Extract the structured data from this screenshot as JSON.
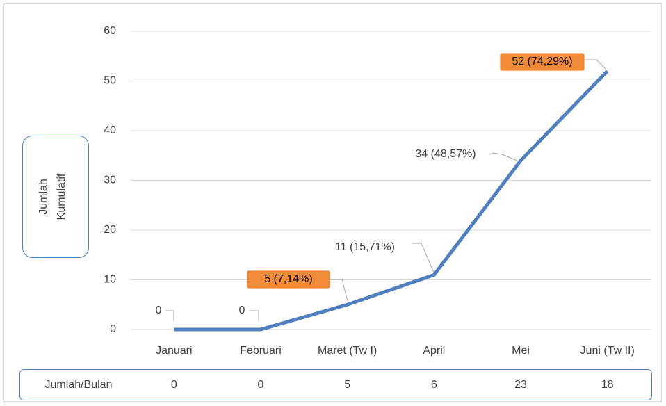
{
  "chart_data": {
    "type": "line",
    "y_label": [
      "Jumlah",
      "Kumulatif"
    ],
    "categories": [
      "Januari",
      "Februari",
      "Maret (Tw I)",
      "April",
      "Mei",
      "Juni (Tw II)"
    ],
    "values": [
      0,
      0,
      5,
      11,
      34,
      52
    ],
    "value_labels": [
      "0",
      "0",
      "5 (7,14%)",
      "11 (15,71%)",
      "34 (48,57%)",
      "52 (74,29%)"
    ],
    "color": "#4f7fc0",
    "ylim": [
      0,
      60
    ],
    "yticks": [
      0,
      10,
      20,
      30,
      40,
      50,
      60
    ],
    "grid": true,
    "table": {
      "label": "Jumlah/Bulan",
      "values": [
        0,
        0,
        5,
        6,
        23,
        18
      ]
    }
  }
}
